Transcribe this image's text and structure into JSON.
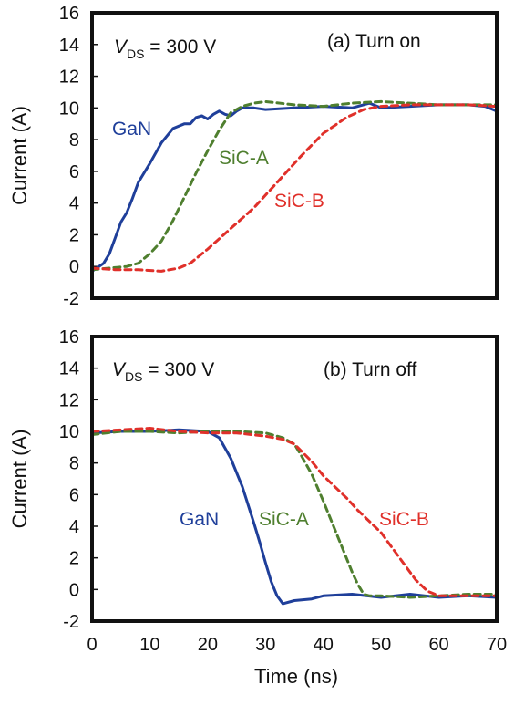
{
  "chart_data": [
    {
      "type": "line",
      "panel": "a",
      "annotation": "(a)  Turn on",
      "vds_label": {
        "v": "V",
        "sub": "DS",
        "rest": " = 300 V"
      },
      "xlabel": "",
      "ylabel": "Current (A)",
      "xlim": [
        0,
        70
      ],
      "ylim": [
        -2,
        16
      ],
      "yticks": [
        "16",
        "14",
        "12",
        "10",
        "8",
        "6",
        "4",
        "2",
        "0",
        "-2"
      ],
      "grid": false,
      "series": [
        {
          "name": "GaN",
          "color": "#1f3f9a",
          "dash": "solid",
          "label": "GaN",
          "x": [
            0,
            2,
            3,
            4,
            5,
            6,
            7,
            8,
            10,
            12,
            14,
            16,
            17,
            18,
            19,
            20,
            21,
            22,
            23,
            24,
            25,
            26,
            28,
            30,
            35,
            40,
            45,
            48,
            50,
            55,
            60,
            65,
            68,
            70
          ],
          "y": [
            -0.3,
            0.2,
            0.8,
            1.8,
            2.8,
            3.4,
            4.3,
            5.3,
            6.5,
            7.8,
            8.7,
            9.0,
            9.0,
            9.4,
            9.5,
            9.3,
            9.6,
            9.8,
            9.6,
            9.5,
            9.8,
            10.0,
            10.0,
            9.9,
            10.0,
            10.1,
            10.0,
            10.3,
            10.0,
            10.1,
            10.2,
            10.2,
            10.1,
            9.8
          ]
        },
        {
          "name": "SiC-A",
          "color": "#4f7f2f",
          "dash": "dashed",
          "label": "SiC-A",
          "x": [
            0,
            3,
            6,
            8,
            10,
            12,
            14,
            16,
            18,
            20,
            22,
            24,
            26,
            28,
            30,
            35,
            40,
            45,
            50,
            55,
            60,
            65,
            70
          ],
          "y": [
            -0.2,
            -0.1,
            0.0,
            0.2,
            0.8,
            1.6,
            2.9,
            4.4,
            5.9,
            7.3,
            8.6,
            9.7,
            10.1,
            10.3,
            10.4,
            10.2,
            10.1,
            10.3,
            10.4,
            10.3,
            10.2,
            10.2,
            10.2
          ]
        },
        {
          "name": "SiC-B",
          "color": "#e0302a",
          "dash": "dashed",
          "label": "SiC-B",
          "x": [
            0,
            4,
            8,
            12,
            15,
            17,
            20,
            24,
            28,
            32,
            36,
            40,
            44,
            47,
            50,
            55,
            60,
            65,
            70
          ],
          "y": [
            -0.1,
            -0.2,
            -0.2,
            -0.3,
            -0.1,
            0.2,
            1.1,
            2.4,
            3.7,
            5.3,
            6.9,
            8.4,
            9.4,
            9.9,
            10.1,
            10.2,
            10.2,
            10.2,
            10.1
          ]
        }
      ]
    },
    {
      "type": "line",
      "panel": "b",
      "annotation": "(b)  Turn off",
      "vds_label": {
        "v": "V",
        "sub": "DS",
        "rest": " = 300 V"
      },
      "xlabel": "Time (ns)",
      "ylabel": "Current (A)",
      "xlim": [
        0,
        70
      ],
      "ylim": [
        -2,
        16
      ],
      "xticks": [
        "0",
        "10",
        "20",
        "30",
        "40",
        "50",
        "60",
        "70"
      ],
      "yticks": [
        "16",
        "14",
        "12",
        "10",
        "8",
        "6",
        "4",
        "2",
        "0",
        "-2"
      ],
      "grid": false,
      "series": [
        {
          "name": "GaN",
          "color": "#1f3f9a",
          "dash": "solid",
          "label": "GaN",
          "x": [
            0,
            5,
            10,
            15,
            20,
            22,
            24,
            26,
            28,
            29,
            30,
            31,
            32,
            33,
            35,
            38,
            40,
            45,
            50,
            55,
            60,
            65,
            70
          ],
          "y": [
            9.9,
            10.0,
            10.0,
            10.1,
            10.0,
            9.6,
            8.3,
            6.5,
            4.2,
            3.0,
            1.7,
            0.5,
            -0.4,
            -0.9,
            -0.7,
            -0.6,
            -0.4,
            -0.3,
            -0.5,
            -0.3,
            -0.5,
            -0.4,
            -0.5
          ]
        },
        {
          "name": "SiC-A",
          "color": "#4f7f2f",
          "dash": "dashed",
          "label": "SiC-A",
          "x": [
            0,
            5,
            10,
            15,
            20,
            25,
            30,
            33,
            35,
            36,
            38,
            40,
            42,
            44,
            45,
            46,
            47,
            48,
            50,
            55,
            60,
            65,
            70
          ],
          "y": [
            9.8,
            10.0,
            10.0,
            9.9,
            10.0,
            10.0,
            9.9,
            9.6,
            9.2,
            8.6,
            7.3,
            5.6,
            3.8,
            2.0,
            1.1,
            0.3,
            -0.3,
            -0.4,
            -0.4,
            -0.5,
            -0.4,
            -0.3,
            -0.3
          ]
        },
        {
          "name": "SiC-B",
          "color": "#e0302a",
          "dash": "dashed",
          "label": "SiC-B",
          "x": [
            0,
            5,
            10,
            15,
            20,
            25,
            30,
            33,
            35,
            38,
            40,
            42,
            44,
            46,
            48,
            50,
            52,
            54,
            56,
            58,
            60,
            65,
            70
          ],
          "y": [
            10.0,
            10.1,
            10.2,
            10.0,
            9.9,
            9.9,
            9.7,
            9.5,
            9.2,
            8.1,
            7.2,
            6.5,
            5.8,
            5.0,
            4.3,
            3.6,
            2.6,
            1.6,
            0.6,
            -0.1,
            -0.4,
            -0.4,
            -0.4
          ]
        }
      ]
    }
  ]
}
